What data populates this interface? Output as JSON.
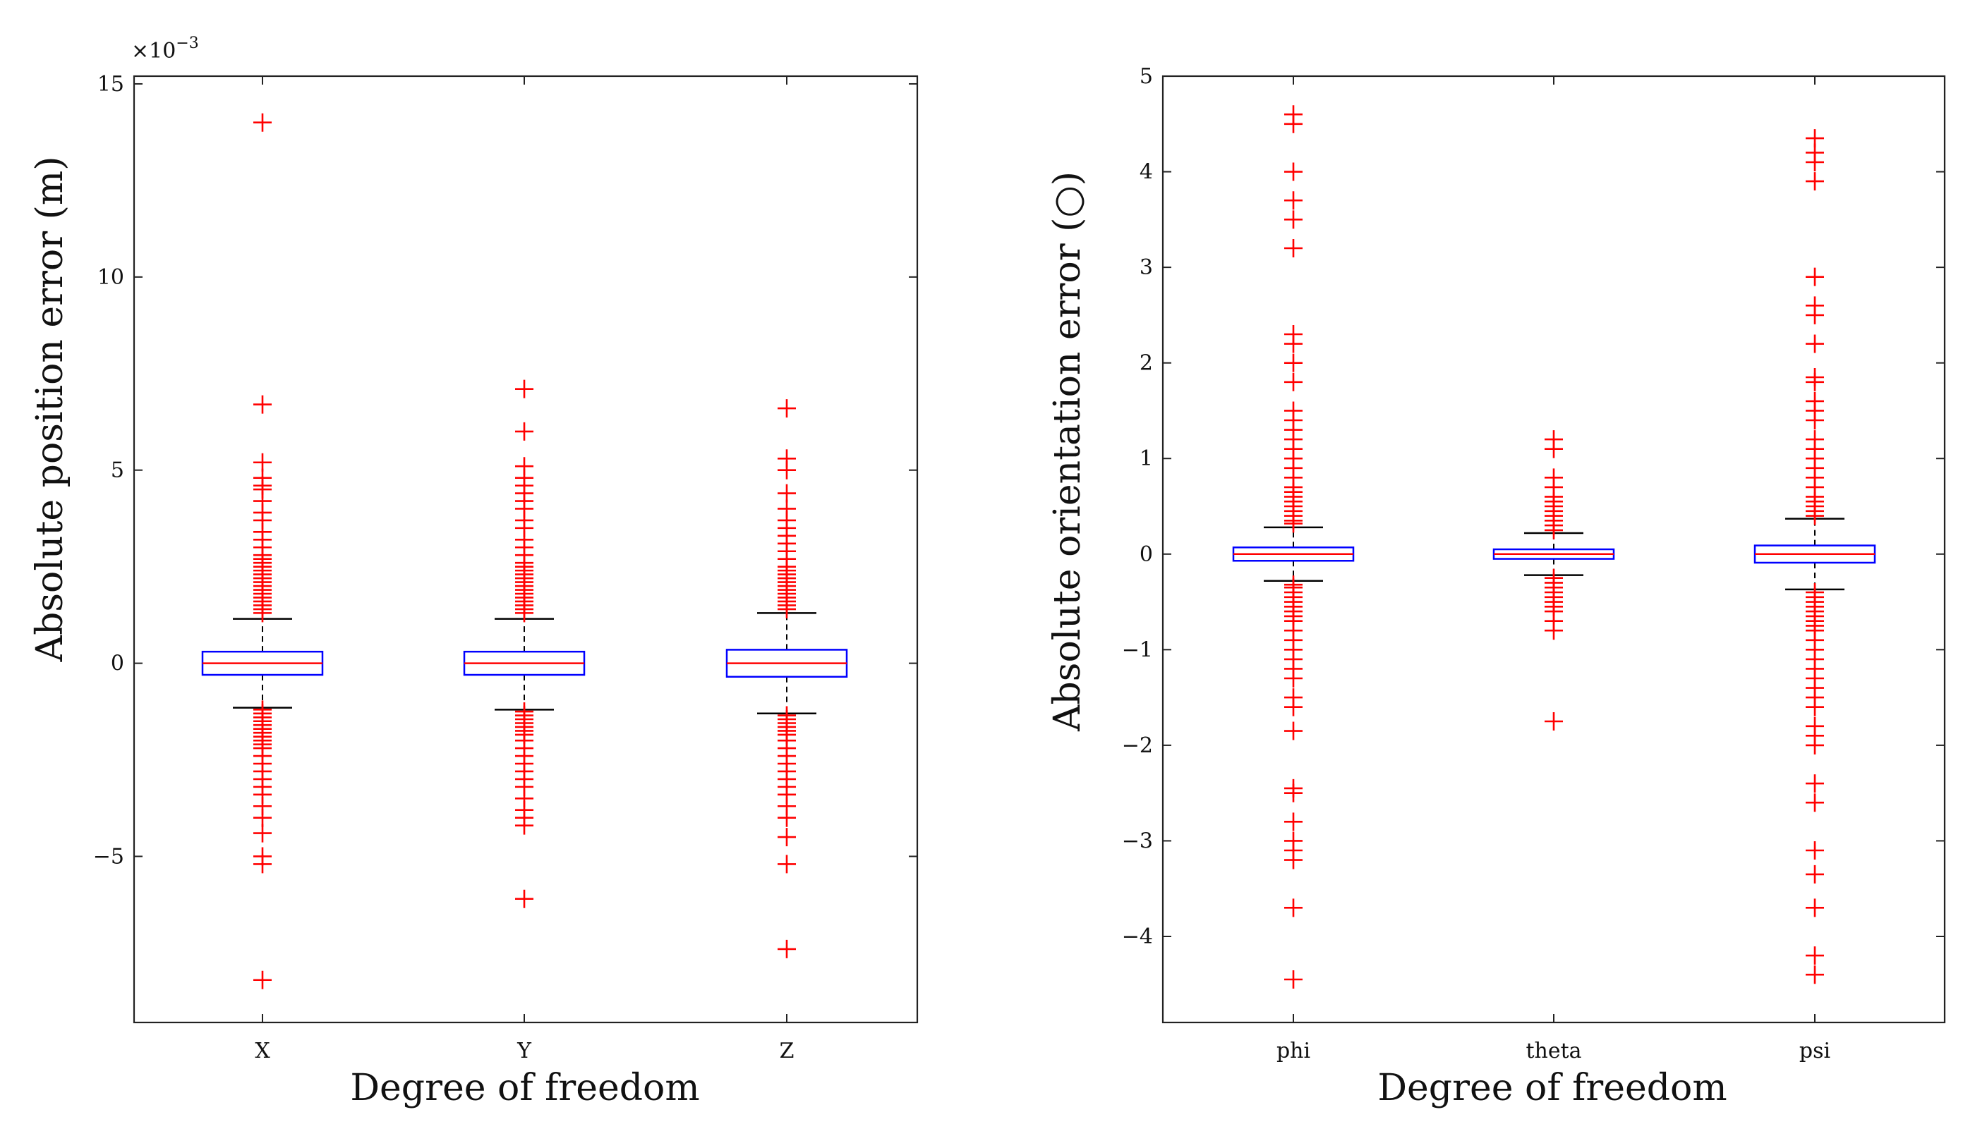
{
  "chart_data": [
    {
      "type": "boxplot",
      "ylabel": "Absolute position error (m)",
      "xlabel": "Degree of freedom",
      "y_exponent_label": "×10",
      "y_exponent_power": "−3",
      "ylim": [
        -9.3,
        15.2
      ],
      "yticks": [
        -5,
        0,
        5,
        10,
        15
      ],
      "ytick_labels": [
        "−5",
        "0",
        "5",
        "10",
        "15"
      ],
      "categories": [
        "X",
        "Y",
        "Z"
      ],
      "colors": {
        "box": "#0000ff",
        "median": "#ff0000",
        "whisker": "#000000",
        "outlier": "#ff0000"
      },
      "boxes": [
        {
          "name": "X",
          "q1": -0.3,
          "median": 0.0,
          "q3": 0.3,
          "whisker_low": -1.15,
          "whisker_high": 1.15,
          "outliers": [
            14.0,
            6.7,
            5.2,
            4.8,
            4.6,
            4.5,
            4.2,
            3.9,
            3.7,
            3.4,
            3.2,
            3.0,
            2.8,
            2.7,
            2.6,
            2.5,
            2.4,
            2.3,
            2.2,
            2.1,
            2.0,
            1.9,
            1.8,
            1.7,
            1.6,
            1.5,
            1.4,
            1.3,
            -1.2,
            -1.3,
            -1.4,
            -1.5,
            -1.6,
            -1.7,
            -1.8,
            -1.9,
            -2.0,
            -2.1,
            -2.2,
            -2.4,
            -2.6,
            -2.8,
            -3.0,
            -3.2,
            -3.4,
            -3.7,
            -4.0,
            -4.4,
            -5.0,
            -5.2,
            -8.2
          ]
        },
        {
          "name": "Y",
          "q1": -0.3,
          "median": 0.0,
          "q3": 0.3,
          "whisker_low": -1.2,
          "whisker_high": 1.15,
          "outliers": [
            7.1,
            6.0,
            5.1,
            4.8,
            4.6,
            4.4,
            4.2,
            4.0,
            3.7,
            3.5,
            3.2,
            3.0,
            2.8,
            2.6,
            2.5,
            2.4,
            2.3,
            2.2,
            2.1,
            2.0,
            1.9,
            1.8,
            1.7,
            1.6,
            1.5,
            1.4,
            1.3,
            -1.25,
            -1.35,
            -1.45,
            -1.55,
            -1.65,
            -1.75,
            -1.85,
            -2.0,
            -2.2,
            -2.4,
            -2.6,
            -2.8,
            -3.0,
            -3.2,
            -3.5,
            -3.8,
            -4.0,
            -4.2,
            -6.1
          ]
        },
        {
          "name": "Z",
          "q1": -0.35,
          "median": 0.0,
          "q3": 0.35,
          "whisker_low": -1.3,
          "whisker_high": 1.3,
          "outliers": [
            6.6,
            5.3,
            5.0,
            4.4,
            4.0,
            3.7,
            3.5,
            3.3,
            3.1,
            2.9,
            2.7,
            2.5,
            2.4,
            2.3,
            2.2,
            2.1,
            2.0,
            1.9,
            1.8,
            1.7,
            1.6,
            1.5,
            1.4,
            -1.35,
            -1.45,
            -1.55,
            -1.65,
            -1.75,
            -1.85,
            -2.0,
            -2.2,
            -2.4,
            -2.6,
            -2.8,
            -3.0,
            -3.2,
            -3.4,
            -3.7,
            -4.0,
            -4.5,
            -5.2,
            -7.4
          ]
        }
      ]
    },
    {
      "type": "boxplot",
      "ylabel": "Absolute orientation error (○)",
      "xlabel": "Degree of freedom",
      "ylim": [
        -4.9,
        5.0
      ],
      "yticks": [
        -4,
        -3,
        -2,
        -1,
        0,
        1,
        2,
        3,
        4,
        5
      ],
      "ytick_labels": [
        "−4",
        "−3",
        "−2",
        "−1",
        "0",
        "1",
        "2",
        "3",
        "4",
        "5"
      ],
      "categories": [
        "phi",
        "theta",
        "psi"
      ],
      "colors": {
        "box": "#0000ff",
        "median": "#ff0000",
        "whisker": "#000000",
        "outlier": "#ff0000"
      },
      "boxes": [
        {
          "name": "phi",
          "q1": -0.07,
          "median": 0.0,
          "q3": 0.07,
          "whisker_low": -0.28,
          "whisker_high": 0.28,
          "outliers": [
            4.6,
            4.5,
            4.0,
            3.7,
            3.5,
            3.2,
            2.3,
            2.2,
            2.0,
            1.8,
            1.5,
            1.4,
            1.3,
            1.2,
            1.1,
            1.0,
            0.9,
            0.8,
            0.7,
            0.65,
            0.6,
            0.55,
            0.5,
            0.45,
            0.4,
            0.35,
            0.32,
            -0.32,
            -0.35,
            -0.4,
            -0.45,
            -0.5,
            -0.55,
            -0.6,
            -0.65,
            -0.7,
            -0.8,
            -0.9,
            -1.0,
            -1.1,
            -1.2,
            -1.3,
            -1.5,
            -1.6,
            -1.85,
            -2.45,
            -2.5,
            -2.8,
            -3.0,
            -3.1,
            -3.2,
            -3.7,
            -4.45
          ]
        },
        {
          "name": "theta",
          "q1": -0.05,
          "median": 0.0,
          "q3": 0.05,
          "whisker_low": -0.22,
          "whisker_high": 0.22,
          "outliers": [
            1.2,
            1.1,
            0.8,
            0.7,
            0.6,
            0.55,
            0.5,
            0.45,
            0.4,
            0.35,
            0.3,
            0.25,
            -0.25,
            -0.3,
            -0.35,
            -0.4,
            -0.45,
            -0.5,
            -0.55,
            -0.6,
            -0.7,
            -0.8,
            -1.75
          ]
        },
        {
          "name": "psi",
          "q1": -0.09,
          "median": 0.0,
          "q3": 0.09,
          "whisker_low": -0.37,
          "whisker_high": 0.37,
          "outliers": [
            4.35,
            4.2,
            4.1,
            3.9,
            2.9,
            2.6,
            2.5,
            2.2,
            1.85,
            1.8,
            1.6,
            1.5,
            1.4,
            1.2,
            1.1,
            1.0,
            0.9,
            0.8,
            0.7,
            0.6,
            0.55,
            0.5,
            0.45,
            0.4,
            -0.4,
            -0.45,
            -0.5,
            -0.55,
            -0.6,
            -0.65,
            -0.7,
            -0.75,
            -0.8,
            -0.9,
            -1.0,
            -1.1,
            -1.2,
            -1.3,
            -1.4,
            -1.5,
            -1.6,
            -1.8,
            -1.9,
            -2.0,
            -2.4,
            -2.6,
            -3.1,
            -3.35,
            -3.7,
            -4.2,
            -4.4
          ]
        }
      ]
    }
  ]
}
